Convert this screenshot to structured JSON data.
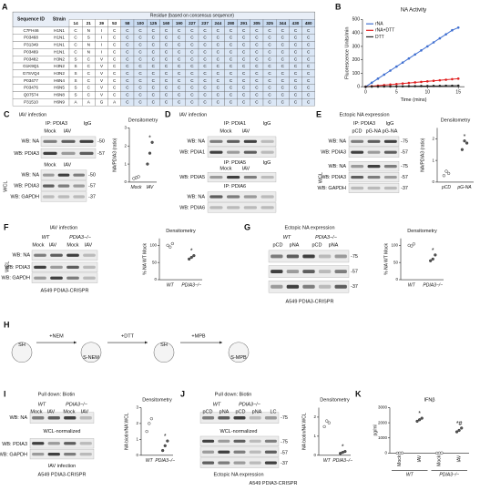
{
  "A": {
    "label": "A",
    "headers": [
      "Sequence ID",
      "Strain"
    ],
    "residue_title": "Residue (based on consensus sequence)",
    "residues": [
      14,
      21,
      39,
      53,
      58,
      100,
      125,
      160,
      190,
      227,
      237,
      244,
      280,
      291,
      305,
      325,
      344,
      430,
      480
    ],
    "rows": [
      {
        "id": "C7FH46",
        "strain": "H1N1",
        "cells": [
          "C",
          "N",
          "I",
          "C",
          "C",
          "C",
          "C",
          "C",
          "C",
          "C",
          "C",
          "C",
          "C",
          "C",
          "C",
          "C",
          "C",
          "C",
          "C"
        ]
      },
      {
        "id": "P03468",
        "strain": "H1N1",
        "cells": [
          "C",
          "S",
          "I",
          "C",
          "C",
          "C",
          "C",
          "C",
          "C",
          "C",
          "C",
          "C",
          "C",
          "C",
          "C",
          "C",
          "C",
          "C",
          "C"
        ]
      },
      {
        "id": "P31349",
        "strain": "H1N1",
        "cells": [
          "C",
          "N",
          "I",
          "C",
          "C",
          "C",
          "C",
          "C",
          "C",
          "C",
          "C",
          "C",
          "C",
          "C",
          "C",
          "C",
          "C",
          "C",
          "C"
        ]
      },
      {
        "id": "P03469",
        "strain": "H1N1",
        "cells": [
          "C",
          "N",
          "I",
          "C",
          "C",
          "C",
          "C",
          "C",
          "C",
          "C",
          "C",
          "C",
          "C",
          "C",
          "C",
          "C",
          "C",
          "C",
          "C"
        ]
      },
      {
        "id": "P03482",
        "strain": "H3N2",
        "cells": [
          "S",
          "C",
          "V",
          "C",
          "C",
          "C",
          "C",
          "C",
          "C",
          "C",
          "C",
          "C",
          "C",
          "C",
          "C",
          "C",
          "C",
          "C",
          "C"
        ]
      },
      {
        "id": "G1K9Q1",
        "strain": "H3N2",
        "cells": [
          "S",
          "C",
          "V",
          "C",
          "C",
          "C",
          "C",
          "C",
          "C",
          "C",
          "C",
          "C",
          "C",
          "C",
          "C",
          "C",
          "C",
          "C",
          "C"
        ]
      },
      {
        "id": "G7SVQ4",
        "strain": "H3N2",
        "cells": [
          "S",
          "C",
          "V",
          "C",
          "C",
          "C",
          "C",
          "C",
          "C",
          "C",
          "C",
          "C",
          "C",
          "C",
          "C",
          "C",
          "C",
          "C",
          "C"
        ]
      },
      {
        "id": "P03477",
        "strain": "H6N4",
        "cells": [
          "S",
          "C",
          "V",
          "C",
          "C",
          "C",
          "C",
          "C",
          "C",
          "C",
          "C",
          "C",
          "C",
          "C",
          "C",
          "C",
          "C",
          "C",
          "C"
        ]
      },
      {
        "id": "P03476",
        "strain": "H6N5",
        "cells": [
          "S",
          "C",
          "V",
          "C",
          "C",
          "C",
          "C",
          "C",
          "C",
          "C",
          "C",
          "C",
          "C",
          "C",
          "C",
          "C",
          "C",
          "C",
          "C"
        ]
      },
      {
        "id": "Q07574",
        "strain": "H6N8",
        "cells": [
          "S",
          "C",
          "V",
          "C",
          "C",
          "C",
          "C",
          "C",
          "C",
          "C",
          "C",
          "C",
          "C",
          "C",
          "C",
          "C",
          "C",
          "C",
          "C"
        ]
      },
      {
        "id": "P31510",
        "strain": "H6N9",
        "cells": [
          "A",
          "A",
          "G",
          "A",
          "C",
          "C",
          "C",
          "C",
          "C",
          "C",
          "C",
          "C",
          "C",
          "C",
          "C",
          "C",
          "C",
          "C",
          "C"
        ]
      }
    ]
  },
  "B": {
    "label": "B",
    "type": "line",
    "title": "NA Activity",
    "y_label": "Fluorescence Units/min",
    "x_label": "Time (mins)",
    "x": [
      0,
      1,
      2,
      3,
      4,
      5,
      6,
      7,
      8,
      9,
      10,
      11,
      12,
      13,
      14,
      15
    ],
    "series": [
      {
        "name": "rNA",
        "color": "#3f6fd1",
        "values": [
          0,
          30,
          60,
          90,
          120,
          150,
          180,
          210,
          240,
          270,
          300,
          330,
          360,
          390,
          420,
          440
        ]
      },
      {
        "name": "rNA+DTT",
        "color": "#e02020",
        "values": [
          0,
          4,
          8,
          12,
          16,
          20,
          24,
          28,
          32,
          36,
          40,
          44,
          48,
          52,
          56,
          60
        ]
      },
      {
        "name": "DTT",
        "color": "#222222",
        "values": [
          0,
          1,
          1,
          2,
          2,
          3,
          3,
          4,
          4,
          5,
          5,
          6,
          6,
          7,
          7,
          8
        ]
      }
    ],
    "xlim": [
      -0.5,
      16
    ],
    "xticks": [
      0,
      5,
      10,
      15
    ],
    "ylim": [
      0,
      500
    ],
    "yticks": [
      0,
      100,
      200,
      300,
      400,
      500
    ]
  },
  "C": {
    "texts": [
      "C",
      "IAV infection",
      "IP: PDIA3",
      "IgG",
      "Mock",
      "IAV",
      "WB: NA",
      "WB: PDIA3",
      "Mock",
      "IAV",
      "WCL",
      "WB: NA",
      "WB: PDIA3",
      "WB: GAPDH",
      "-50",
      "-57",
      "-50",
      "-57",
      "-37"
    ],
    "plot": {
      "title": "Densitometry",
      "y_label": "NA/PDIA3 (ratio)",
      "categories": [
        "Mock",
        "IAV"
      ],
      "points": [
        [
          0.2,
          0.25,
          0.3
        ],
        [
          1.0,
          1.6,
          2.2
        ]
      ],
      "ylim": [
        0,
        3
      ],
      "yticks": [
        0,
        1,
        2,
        3
      ],
      "annotations": [
        {
          "at": 1,
          "text": "*"
        }
      ]
    }
  },
  "D": {
    "texts": [
      "D",
      "IAV infection",
      "IP: PDIA1",
      "IgG",
      "Mock",
      "IAV",
      "WB: NA",
      "WB: PDIA1",
      "IP: PDIA5",
      "Mock",
      "IAV",
      "IgG",
      "WB: PDIA5",
      "IP: PDIA6",
      "WB: NA",
      "WB: PDIA6"
    ]
  },
  "E": {
    "texts": [
      "E",
      "Ectopic NA expression",
      "IP: PDIA3",
      "IgG",
      "pCD",
      "pG-NA",
      "pG-NA",
      "WB: NA",
      "WB: PDIA3",
      "WB: NA",
      "WB: PDIA3",
      "WB: GAPDH",
      "WCL",
      "-75",
      "-57",
      "-75",
      "-57",
      "-37"
    ],
    "plot": {
      "title": "Densitometry",
      "y_label": "NA/PDIA3 (ratio)",
      "categories": [
        "pCD",
        "pG-NA"
      ],
      "points": [
        [
          0.3,
          0.5,
          0.4
        ],
        [
          1.5,
          1.9,
          1.8
        ]
      ],
      "ylim": [
        0,
        2.5
      ],
      "yticks": [
        0,
        1,
        2
      ],
      "annotations": [
        {
          "at": 1,
          "text": "*"
        }
      ]
    }
  },
  "F": {
    "texts": [
      "F",
      "IAV infection",
      "WT",
      "PDIA3−/−",
      "Mock",
      "IAV",
      "Mock",
      "IAV",
      "WB: NA",
      "WB: PDIA3",
      "WB: GAPDH",
      "WCL",
      "A549 PDIA3-CRISPR"
    ],
    "plot": {
      "title": "Densitometry",
      "y_label": "% NA WT Mock",
      "categories": [
        "WT",
        "PDIA3−/−"
      ],
      "points": [
        [
          100,
          95,
          105
        ],
        [
          60,
          65,
          70
        ]
      ],
      "ylim": [
        0,
        120
      ],
      "yticks": [
        0,
        50,
        100
      ],
      "annotations": [
        {
          "at": 1,
          "text": "*"
        }
      ]
    }
  },
  "G": {
    "texts": [
      "G",
      "Ectopic NA expression",
      "WT",
      "PDIA3−/−",
      "pCD",
      "pNA",
      "pCD",
      "pNA",
      "-75",
      "-57",
      "-37",
      "A549 PDIA3-CRISPR"
    ],
    "plot": {
      "title": "Densitometry",
      "y_label": "% NA WT Mock",
      "categories": [
        "WT",
        "PDIA3−/−"
      ],
      "points": [
        [
          100,
          98,
          104
        ],
        [
          55,
          60,
          72
        ]
      ],
      "ylim": [
        0,
        120
      ],
      "yticks": [
        0,
        50,
        100
      ],
      "annotations": [
        {
          "at": 1,
          "text": "*"
        }
      ]
    }
  },
  "H": {
    "texts": [
      "H",
      "+NEM",
      "+DTT",
      "+MPB",
      "SH",
      "S-NEM",
      "SH",
      "S-MPB"
    ]
  },
  "I": {
    "texts": [
      "I",
      "Pull down: Biotin",
      "WT",
      "PDIA3−/−",
      "Mock",
      "IAV",
      "Mock",
      "IAV",
      "WB: NA",
      "WCL-normalized",
      "WB: PDIA3",
      "WB: GAPDH",
      "IAV infection",
      "A549 PDIA3-CRISPR"
    ],
    "plot": {
      "title": "Densitometry",
      "y_label": "NA biotin/NA WCL",
      "categories": [
        "WT",
        "PDIA3−/−"
      ],
      "points": [
        [
          1.5,
          2.0,
          2.3
        ],
        [
          0.3,
          0.6,
          0.9
        ]
      ],
      "ylim": [
        0,
        3
      ],
      "yticks": [
        0,
        1,
        2,
        3
      ],
      "annotations": [
        {
          "at": 1,
          "text": "*"
        }
      ]
    }
  },
  "J": {
    "texts": [
      "J",
      "Pull down: Biotin",
      "WT",
      "PDIA3−/−",
      "pCD",
      "pNA",
      "pCD",
      "pNA",
      "LC",
      "-75",
      "WCL-normalized",
      "-75",
      "-57",
      "-37",
      "Ectopic NA expression",
      "A549 PDIA3-CRISPR"
    ],
    "plot": {
      "title": "Densitometry",
      "y_label": "NA biotin/NA WCL",
      "categories": [
        "WT",
        "PDIA3−/−"
      ],
      "points": [
        [
          1.5,
          1.8,
          1.7
        ],
        [
          0.1,
          0.15,
          0.2
        ]
      ],
      "ylim": [
        0,
        2.5
      ],
      "yticks": [
        0,
        1,
        2
      ],
      "annotations": [
        {
          "at": 1,
          "text": "*"
        }
      ]
    }
  },
  "K": {
    "texts": [
      "K"
    ],
    "plot": {
      "title": "IFNβ",
      "y_label": "pg/ml",
      "categories": [
        "Mock",
        "IAV",
        "Mock",
        "IAV"
      ],
      "groups": [
        "WT",
        "PDIA3−/−"
      ],
      "points": [
        [
          0,
          5,
          10
        ],
        [
          2100,
          2200,
          2300
        ],
        [
          0,
          5,
          10
        ],
        [
          1400,
          1500,
          1650
        ]
      ],
      "ylim": [
        0,
        3000
      ],
      "yticks": [
        0,
        1000,
        2000,
        3000
      ],
      "annotations": [
        {
          "at": 1,
          "text": "*"
        },
        {
          "at": 3,
          "text": "*#"
        }
      ]
    }
  }
}
